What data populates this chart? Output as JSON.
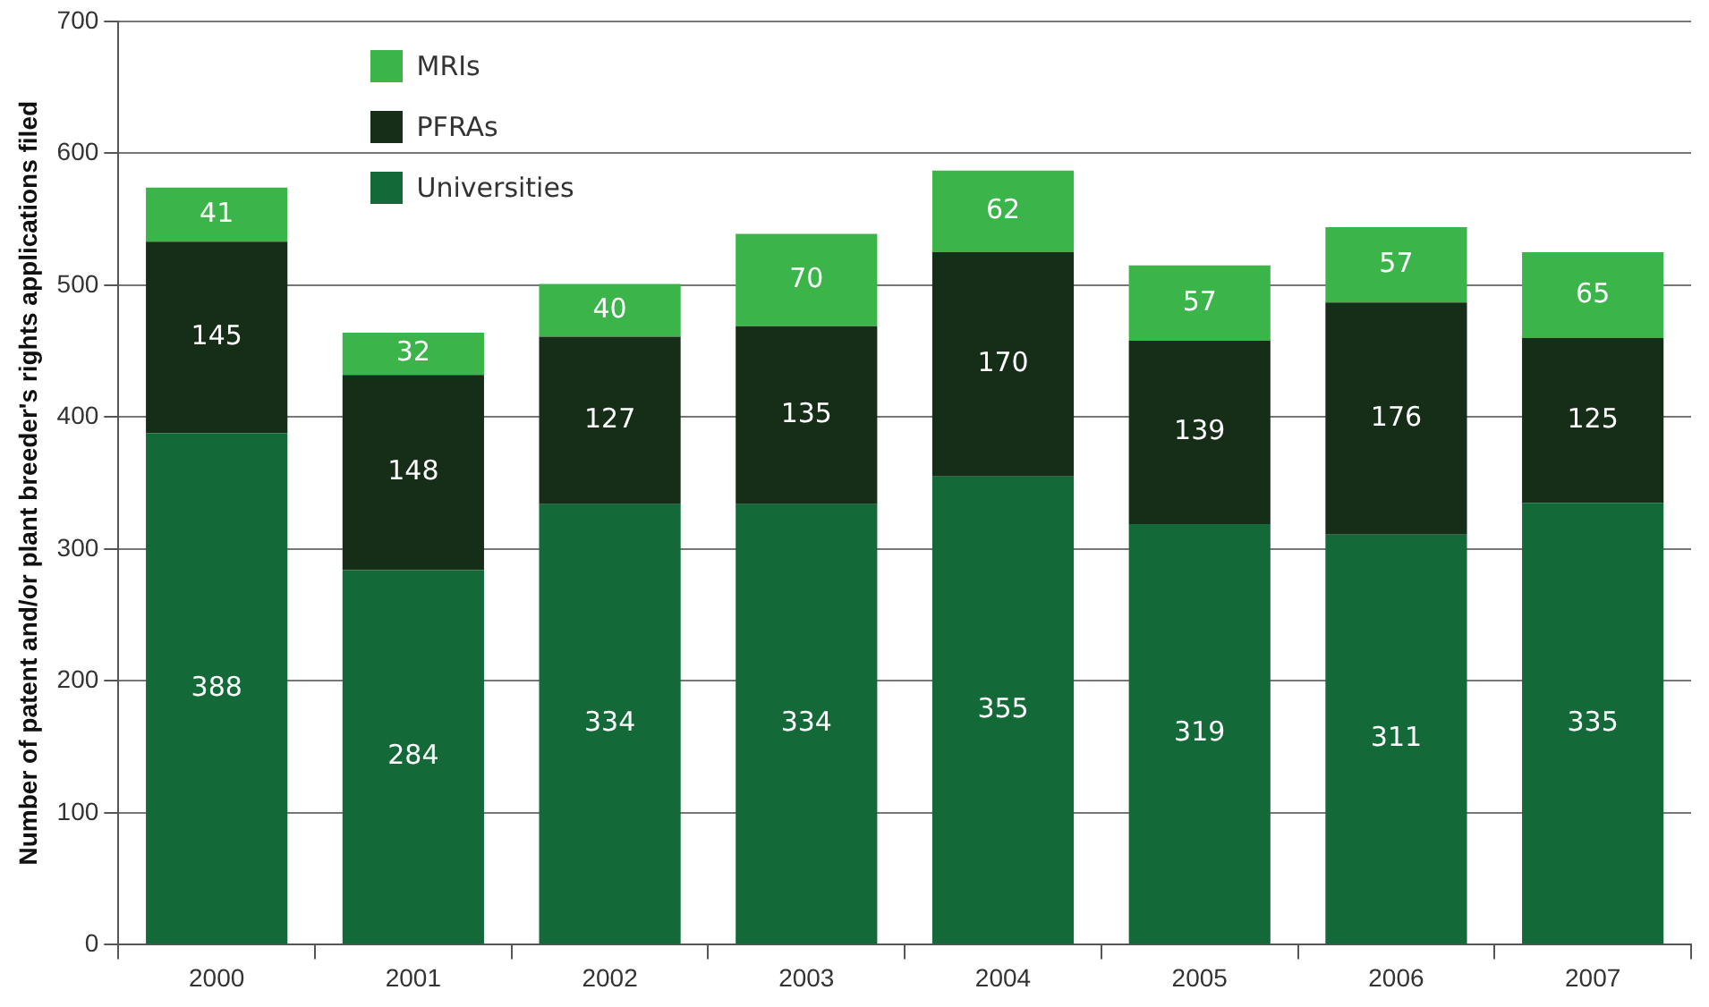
{
  "chart_data": {
    "type": "bar",
    "stacked": true,
    "ylabel": "Number of patent and/or plant breeder's rights applications filed",
    "categories": [
      "2000",
      "2001",
      "2002",
      "2003",
      "2004",
      "2005",
      "2006",
      "2007"
    ],
    "series": [
      {
        "name": "Universities",
        "color": "#136a38",
        "values": [
          388,
          284,
          334,
          334,
          355,
          319,
          311,
          335
        ]
      },
      {
        "name": "PFRAs",
        "color": "#162e18",
        "values": [
          145,
          148,
          127,
          135,
          170,
          139,
          176,
          125
        ]
      },
      {
        "name": "MRIs",
        "color": "#3bb54a",
        "values": [
          41,
          32,
          40,
          70,
          62,
          57,
          57,
          65
        ]
      }
    ],
    "ylim": [
      0,
      700
    ],
    "yticks": [
      0,
      100,
      200,
      300,
      400,
      500,
      600,
      700
    ],
    "grid": "y",
    "legend": "top left",
    "data_labels": true
  }
}
